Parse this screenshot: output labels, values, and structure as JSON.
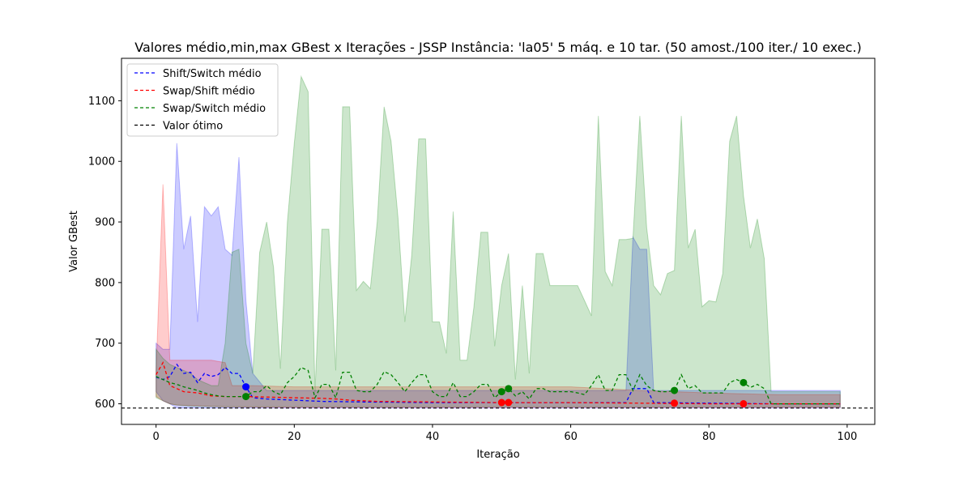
{
  "chart_data": {
    "type": "line",
    "title": "Valores médio,min,max GBest x Iterações - JSSP Instância: 'la05' 5 máq. e 10 tar. (50 amost./100 iter./ 10 exec.)",
    "xlabel": "Iteração",
    "ylabel": "Valor GBest",
    "xlim": [
      -5,
      104
    ],
    "ylim": [
      566,
      1170
    ],
    "xticks": [
      0,
      20,
      40,
      60,
      80,
      100
    ],
    "yticks": [
      600,
      700,
      800,
      900,
      1000,
      1100
    ],
    "grid": false,
    "legend_position": "top-left",
    "optimal_value": 593,
    "legend": [
      {
        "label": "Shift/Switch médio",
        "color": "#0000ff",
        "style": "dashed"
      },
      {
        "label": "Swap/Shift médio",
        "color": "#ff0000",
        "style": "dashed"
      },
      {
        "label": "Swap/Switch médio",
        "color": "#008000",
        "style": "dashed"
      },
      {
        "label": "Valor ótimo",
        "color": "#000000",
        "style": "dashed"
      }
    ],
    "series": [
      {
        "name": "Shift/Switch médio",
        "color": "#0000ff",
        "fill_alpha": 0.2,
        "mean": [
          [
            0,
            644
          ],
          [
            1,
            640
          ],
          [
            2,
            645
          ],
          [
            3,
            665
          ],
          [
            4,
            650
          ],
          [
            5,
            652
          ],
          [
            6,
            635
          ],
          [
            7,
            650
          ],
          [
            8,
            645
          ],
          [
            9,
            648
          ],
          [
            10,
            660
          ],
          [
            11,
            650
          ],
          [
            12,
            650
          ],
          [
            13,
            628
          ],
          [
            14,
            610
          ],
          [
            16,
            608
          ],
          [
            20,
            606
          ],
          [
            24,
            604
          ],
          [
            30,
            603
          ],
          [
            40,
            602
          ],
          [
            50,
            602
          ],
          [
            60,
            602
          ],
          [
            65,
            602
          ],
          [
            68,
            602
          ],
          [
            69,
            625
          ],
          [
            71,
            625
          ],
          [
            72,
            602
          ],
          [
            80,
            601
          ],
          [
            90,
            600
          ],
          [
            99,
            600
          ]
        ],
        "min": [
          [
            0,
            620
          ],
          [
            1,
            605
          ],
          [
            2,
            600
          ],
          [
            3,
            593
          ],
          [
            5,
            593
          ],
          [
            10,
            593
          ],
          [
            20,
            593
          ],
          [
            40,
            593
          ],
          [
            60,
            593
          ],
          [
            80,
            593
          ],
          [
            99,
            593
          ]
        ],
        "max": [
          [
            0,
            700
          ],
          [
            1,
            690
          ],
          [
            2,
            690
          ],
          [
            3,
            1030
          ],
          [
            4,
            855
          ],
          [
            5,
            910
          ],
          [
            6,
            735
          ],
          [
            7,
            925
          ],
          [
            8,
            910
          ],
          [
            9,
            925
          ],
          [
            10,
            855
          ],
          [
            11,
            845
          ],
          [
            12,
            1007
          ],
          [
            13,
            770
          ],
          [
            14,
            650
          ],
          [
            16,
            622
          ],
          [
            40,
            622
          ],
          [
            60,
            622
          ],
          [
            68,
            622
          ],
          [
            69,
            875
          ],
          [
            70,
            855
          ],
          [
            71,
            855
          ],
          [
            72,
            622
          ],
          [
            99,
            622
          ]
        ],
        "markers": [
          [
            13,
            628
          ]
        ]
      },
      {
        "name": "Swap/Shift médio",
        "color": "#ff0000",
        "fill_alpha": 0.2,
        "mean": [
          [
            0,
            648
          ],
          [
            1,
            668
          ],
          [
            2,
            630
          ],
          [
            3,
            625
          ],
          [
            4,
            620
          ],
          [
            6,
            618
          ],
          [
            8,
            613
          ],
          [
            10,
            612
          ],
          [
            13,
            612
          ],
          [
            20,
            610
          ],
          [
            24,
            609
          ],
          [
            26,
            608
          ],
          [
            28,
            606
          ],
          [
            32,
            604
          ],
          [
            40,
            603
          ],
          [
            50,
            602
          ],
          [
            60,
            602
          ],
          [
            70,
            601
          ],
          [
            80,
            600
          ],
          [
            90,
            600
          ],
          [
            99,
            600
          ]
        ],
        "min": [
          [
            0,
            612
          ],
          [
            1,
            605
          ],
          [
            2,
            600
          ],
          [
            3,
            598
          ],
          [
            5,
            597
          ],
          [
            10,
            595
          ],
          [
            20,
            594
          ],
          [
            40,
            594
          ],
          [
            60,
            594
          ],
          [
            80,
            594
          ],
          [
            99,
            594
          ]
        ],
        "max": [
          [
            0,
            655
          ],
          [
            1,
            962
          ],
          [
            2,
            672
          ],
          [
            3,
            672
          ],
          [
            5,
            672
          ],
          [
            8,
            672
          ],
          [
            9,
            670
          ],
          [
            10,
            668
          ],
          [
            11,
            630
          ],
          [
            14,
            630
          ],
          [
            20,
            628
          ],
          [
            30,
            628
          ],
          [
            40,
            628
          ],
          [
            60,
            628
          ],
          [
            70,
            622
          ],
          [
            80,
            618
          ],
          [
            90,
            615
          ],
          [
            99,
            615
          ]
        ],
        "markers": [
          [
            50,
            602
          ],
          [
            51,
            602
          ],
          [
            75,
            601
          ],
          [
            85,
            600
          ]
        ]
      },
      {
        "name": "Swap/Switch médio",
        "color": "#008000",
        "fill_alpha": 0.2,
        "mean": [
          [
            0,
            645
          ],
          [
            1,
            640
          ],
          [
            2,
            635
          ],
          [
            3,
            632
          ],
          [
            4,
            628
          ],
          [
            5,
            625
          ],
          [
            6,
            622
          ],
          [
            7,
            618
          ],
          [
            8,
            615
          ],
          [
            9,
            613
          ],
          [
            10,
            612
          ],
          [
            11,
            612
          ],
          [
            12,
            612
          ],
          [
            13,
            612
          ],
          [
            14,
            620
          ],
          [
            15,
            620
          ],
          [
            16,
            630
          ],
          [
            17,
            620
          ],
          [
            18,
            615
          ],
          [
            19,
            635
          ],
          [
            20,
            645
          ],
          [
            21,
            660
          ],
          [
            22,
            655
          ],
          [
            23,
            610
          ],
          [
            24,
            632
          ],
          [
            25,
            632
          ],
          [
            26,
            610
          ],
          [
            27,
            652
          ],
          [
            28,
            652
          ],
          [
            29,
            622
          ],
          [
            30,
            620
          ],
          [
            31,
            620
          ],
          [
            32,
            632
          ],
          [
            33,
            653
          ],
          [
            34,
            648
          ],
          [
            35,
            635
          ],
          [
            36,
            620
          ],
          [
            37,
            635
          ],
          [
            38,
            648
          ],
          [
            39,
            648
          ],
          [
            40,
            620
          ],
          [
            41,
            612
          ],
          [
            42,
            612
          ],
          [
            43,
            635
          ],
          [
            44,
            612
          ],
          [
            45,
            612
          ],
          [
            46,
            620
          ],
          [
            47,
            632
          ],
          [
            48,
            632
          ],
          [
            49,
            610
          ],
          [
            50,
            620
          ],
          [
            51,
            625
          ],
          [
            52,
            613
          ],
          [
            53,
            620
          ],
          [
            54,
            608
          ],
          [
            55,
            625
          ],
          [
            56,
            625
          ],
          [
            57,
            620
          ],
          [
            58,
            620
          ],
          [
            59,
            620
          ],
          [
            60,
            620
          ],
          [
            61,
            618
          ],
          [
            62,
            615
          ],
          [
            63,
            630
          ],
          [
            64,
            648
          ],
          [
            65,
            622
          ],
          [
            66,
            622
          ],
          [
            67,
            648
          ],
          [
            68,
            648
          ],
          [
            69,
            622
          ],
          [
            70,
            648
          ],
          [
            71,
            630
          ],
          [
            72,
            622
          ],
          [
            73,
            620
          ],
          [
            74,
            620
          ],
          [
            75,
            622
          ],
          [
            76,
            648
          ],
          [
            77,
            625
          ],
          [
            78,
            630
          ],
          [
            79,
            618
          ],
          [
            80,
            618
          ],
          [
            81,
            618
          ],
          [
            82,
            618
          ],
          [
            83,
            635
          ],
          [
            84,
            640
          ],
          [
            85,
            635
          ],
          [
            86,
            627
          ],
          [
            87,
            632
          ],
          [
            88,
            625
          ],
          [
            89,
            600
          ],
          [
            99,
            600
          ]
        ],
        "min": [
          [
            0,
            610
          ],
          [
            1,
            605
          ],
          [
            2,
            600
          ],
          [
            3,
            598
          ],
          [
            5,
            596
          ],
          [
            10,
            595
          ],
          [
            20,
            595
          ],
          [
            40,
            595
          ],
          [
            60,
            595
          ],
          [
            80,
            595
          ],
          [
            99,
            595
          ]
        ],
        "max": [
          [
            0,
            690
          ],
          [
            1,
            675
          ],
          [
            2,
            665
          ],
          [
            3,
            660
          ],
          [
            4,
            655
          ],
          [
            5,
            650
          ],
          [
            6,
            640
          ],
          [
            7,
            635
          ],
          [
            8,
            630
          ],
          [
            9,
            630
          ],
          [
            10,
            700
          ],
          [
            11,
            850
          ],
          [
            12,
            855
          ],
          [
            13,
            700
          ],
          [
            14,
            650
          ],
          [
            15,
            850
          ],
          [
            16,
            900
          ],
          [
            17,
            825
          ],
          [
            18,
            658
          ],
          [
            19,
            900
          ],
          [
            20,
            1030
          ],
          [
            21,
            1140
          ],
          [
            22,
            1115
          ],
          [
            23,
            620
          ],
          [
            24,
            888
          ],
          [
            25,
            888
          ],
          [
            26,
            655
          ],
          [
            27,
            1090
          ],
          [
            28,
            1090
          ],
          [
            29,
            787
          ],
          [
            30,
            802
          ],
          [
            31,
            790
          ],
          [
            32,
            900
          ],
          [
            33,
            1090
          ],
          [
            34,
            1033
          ],
          [
            35,
            908
          ],
          [
            36,
            735
          ],
          [
            37,
            845
          ],
          [
            38,
            1037
          ],
          [
            39,
            1037
          ],
          [
            40,
            735
          ],
          [
            41,
            735
          ],
          [
            42,
            683
          ],
          [
            43,
            917
          ],
          [
            44,
            672
          ],
          [
            45,
            672
          ],
          [
            46,
            760
          ],
          [
            47,
            883
          ],
          [
            48,
            883
          ],
          [
            49,
            695
          ],
          [
            50,
            795
          ],
          [
            51,
            848
          ],
          [
            52,
            640
          ],
          [
            53,
            795
          ],
          [
            54,
            650
          ],
          [
            55,
            848
          ],
          [
            56,
            848
          ],
          [
            57,
            795
          ],
          [
            58,
            795
          ],
          [
            59,
            795
          ],
          [
            60,
            795
          ],
          [
            61,
            795
          ],
          [
            62,
            770
          ],
          [
            63,
            745
          ],
          [
            64,
            1075
          ],
          [
            65,
            818
          ],
          [
            66,
            795
          ],
          [
            67,
            871
          ],
          [
            68,
            871
          ],
          [
            69,
            873
          ],
          [
            70,
            1075
          ],
          [
            71,
            890
          ],
          [
            72,
            795
          ],
          [
            73,
            780
          ],
          [
            74,
            815
          ],
          [
            75,
            820
          ],
          [
            76,
            1075
          ],
          [
            77,
            857
          ],
          [
            78,
            888
          ],
          [
            79,
            760
          ],
          [
            80,
            770
          ],
          [
            81,
            768
          ],
          [
            82,
            815
          ],
          [
            83,
            1033
          ],
          [
            84,
            1075
          ],
          [
            85,
            943
          ],
          [
            86,
            857
          ],
          [
            87,
            905
          ],
          [
            88,
            840
          ],
          [
            89,
            620
          ],
          [
            99,
            620
          ]
        ],
        "markers": [
          [
            13,
            612
          ],
          [
            50,
            620
          ],
          [
            51,
            625
          ],
          [
            75,
            622
          ],
          [
            85,
            635
          ]
        ]
      }
    ]
  }
}
